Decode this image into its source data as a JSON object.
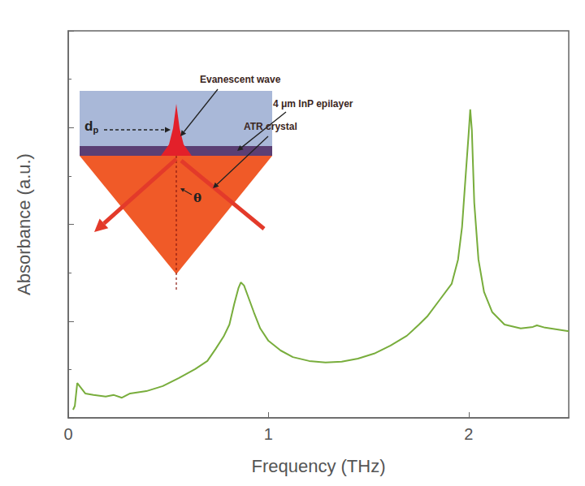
{
  "chart_data": {
    "type": "line",
    "x_label": "Frequency (THz)",
    "y_label": "Absorbance (a.u.)",
    "x": [
      0.024,
      0.033,
      0.045,
      0.085,
      0.126,
      0.187,
      0.228,
      0.268,
      0.309,
      0.39,
      0.472,
      0.553,
      0.634,
      0.695,
      0.736,
      0.776,
      0.805,
      0.829,
      0.85,
      0.862,
      0.878,
      0.898,
      0.927,
      0.959,
      1.0,
      1.061,
      1.122,
      1.203,
      1.285,
      1.366,
      1.447,
      1.528,
      1.61,
      1.691,
      1.752,
      1.793,
      1.854,
      1.915,
      1.947,
      1.967,
      1.984,
      2.0,
      2.008,
      2.016,
      2.028,
      2.049,
      2.077,
      2.118,
      2.179,
      2.26,
      2.321,
      2.341,
      2.382,
      2.5
    ],
    "values": [
      0.021,
      0.031,
      0.09,
      0.063,
      0.059,
      0.055,
      0.059,
      0.052,
      0.063,
      0.069,
      0.082,
      0.103,
      0.126,
      0.147,
      0.178,
      0.21,
      0.241,
      0.294,
      0.335,
      0.35,
      0.342,
      0.314,
      0.273,
      0.231,
      0.199,
      0.174,
      0.157,
      0.147,
      0.143,
      0.145,
      0.153,
      0.166,
      0.187,
      0.212,
      0.241,
      0.262,
      0.304,
      0.346,
      0.409,
      0.493,
      0.618,
      0.734,
      0.797,
      0.744,
      0.556,
      0.409,
      0.325,
      0.273,
      0.241,
      0.231,
      0.235,
      0.239,
      0.233,
      0.224
    ],
    "color": "#78ad3c",
    "xlim": [
      0,
      2.5
    ],
    "xticks": [
      0,
      1,
      2
    ],
    "ylim": [
      0,
      1
    ],
    "yticks": [
      0,
      0.25,
      0.5,
      0.75,
      1
    ],
    "tick_labels": "x",
    "grid": false,
    "inset": {
      "evanescent_label": "Evanescent wave",
      "epilayer_label": "4 μm InP epilayer",
      "crystal_label": "ATR crystal",
      "depth_label": {
        "text": "d",
        "subscript": "p"
      },
      "angle_label": "θ"
    }
  }
}
